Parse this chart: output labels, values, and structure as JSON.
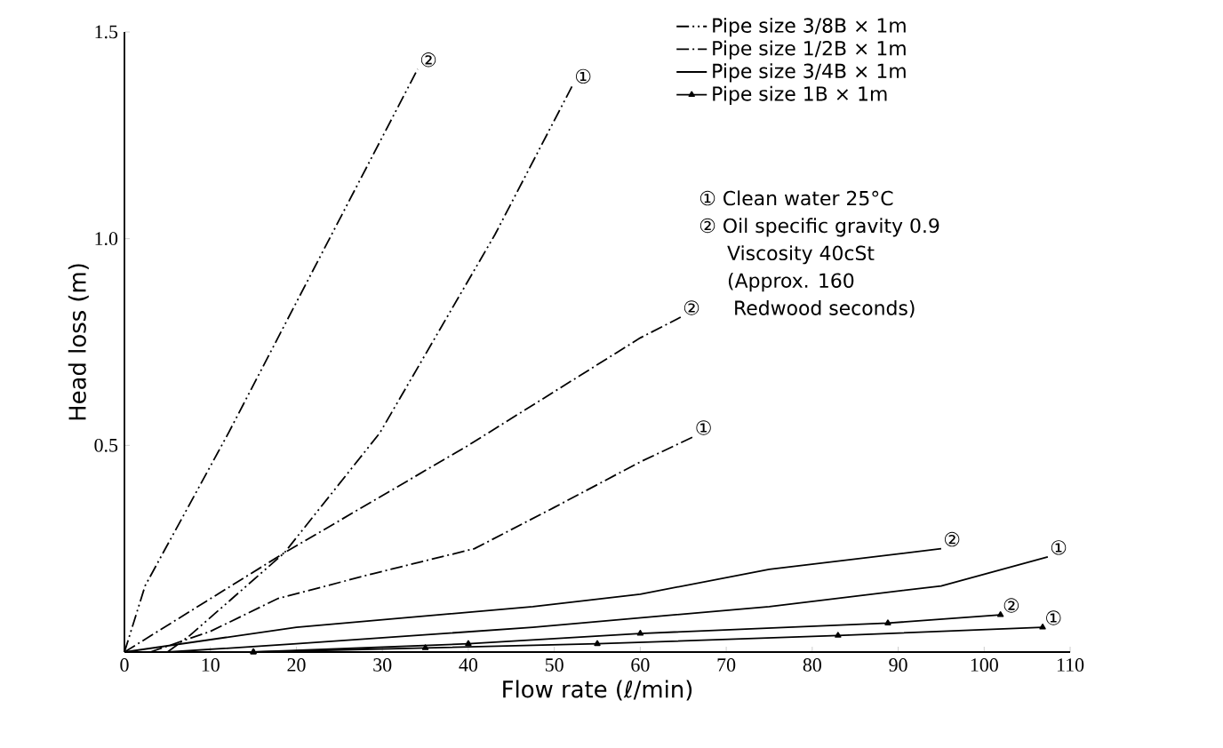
{
  "chart_data": {
    "type": "line",
    "xlabel": "Flow rate (ℓ/min)",
    "ylabel": "Head loss (m)",
    "xlim": [
      0,
      110
    ],
    "ylim": [
      0,
      1.5
    ],
    "xticks": [
      0,
      10,
      20,
      30,
      40,
      50,
      60,
      70,
      80,
      90,
      100,
      110
    ],
    "yticks": [
      {
        "value": 0.5,
        "label": "0.5"
      },
      {
        "value": 1.0,
        "label": "1.0"
      },
      {
        "value": 1.5,
        "label": "1.5"
      }
    ],
    "grid": false,
    "legend": "top right",
    "series": [
      {
        "name": "Pipe size 3/8B × 1m",
        "color": "#000000",
        "line_style": "dashdotdotted",
        "x": [
          0,
          2.4,
          12.1,
          24.1,
          34.1
        ],
        "values": [
          0,
          0.16,
          0.53,
          1.01,
          1.41
        ]
      },
      {
        "color": "#000000",
        "line_style": "dashdotdotted",
        "x": [
          5,
          7.6,
          18.6,
          29.7,
          43.1,
          52.1
        ],
        "values": [
          0,
          0.04,
          0.24,
          0.53,
          1.01,
          1.37
        ]
      },
      {
        "name": "Pipe size 1/2B × 1m",
        "color": "#000000",
        "line_style": "dashdotted",
        "x": [
          0,
          18.6,
          40,
          60,
          64.7
        ],
        "values": [
          0,
          0.24,
          0.5,
          0.76,
          0.81
        ]
      },
      {
        "color": "#000000",
        "line_style": "dashdotted",
        "x": [
          3,
          10,
          17.9,
          29,
          40.7,
          50,
          60,
          66.1
        ],
        "values": [
          0,
          0.05,
          0.13,
          0.19,
          0.25,
          0.35,
          0.46,
          0.52
        ]
      },
      {
        "name": "Pipe size 3/4B × 1m",
        "color": "#000000",
        "line_style": "solid",
        "x": [
          0,
          20,
          47.5,
          60,
          75,
          95
        ],
        "values": [
          0,
          0.06,
          0.11,
          0.14,
          0.2,
          0.25
        ]
      },
      {
        "color": "#000000",
        "line_style": "solid",
        "x": [
          5,
          20,
          47.5,
          75,
          95,
          107.4
        ],
        "values": [
          0,
          0.02,
          0.06,
          0.11,
          0.16,
          0.23
        ]
      },
      {
        "name": "Pipe size 1B × 1m",
        "color": "#000000",
        "line_style": "solid",
        "marker": "triangle",
        "x": [
          15,
          40,
          60,
          88.8,
          101.9
        ],
        "values": [
          0,
          0.02,
          0.045,
          0.07,
          0.09
        ]
      },
      {
        "color": "#000000",
        "line_style": "solid",
        "marker": "triangle",
        "x": [
          15,
          35,
          55,
          83,
          106.8
        ],
        "values": [
          0,
          0.01,
          0.02,
          0.04,
          0.06
        ]
      }
    ],
    "annotations": [
      {
        "text": "②",
        "x": 34.1,
        "y": 1.41
      },
      {
        "text": "①",
        "x": 52.1,
        "y": 1.37
      },
      {
        "text": "②",
        "x": 64.7,
        "y": 0.81
      },
      {
        "text": "①",
        "x": 66.1,
        "y": 0.52
      },
      {
        "text": "②",
        "x": 95,
        "y": 0.25
      },
      {
        "text": "①",
        "x": 107.4,
        "y": 0.23
      },
      {
        "text": "②",
        "x": 101.9,
        "y": 0.09
      },
      {
        "text": "①",
        "x": 106.8,
        "y": 0.06
      },
      "① Clean water 25°C",
      "② Oil specific gravity 0.9",
      "Viscosity 40cSt",
      "(Approx. 160",
      " Redwood seconds)"
    ]
  }
}
